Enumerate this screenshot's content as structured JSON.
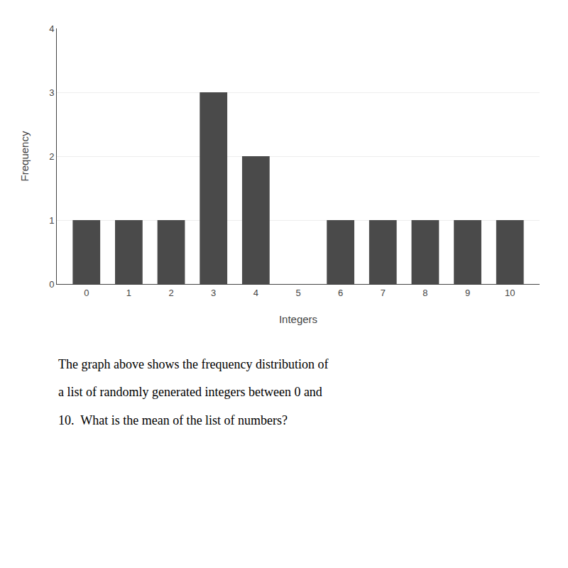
{
  "chart_data": {
    "type": "bar",
    "x": [
      0,
      1,
      2,
      3,
      4,
      5,
      6,
      7,
      8,
      9,
      10
    ],
    "values": [
      1,
      1,
      1,
      3,
      2,
      0,
      1,
      1,
      1,
      1,
      1
    ],
    "color": "#4a4a4a",
    "xlabel": "Integers",
    "ylabel": "Frequency",
    "xlim": [
      -0.7,
      10.7
    ],
    "xticks": [
      0,
      1,
      2,
      3,
      4,
      5,
      6,
      7,
      8,
      9,
      10
    ],
    "ylim": [
      0,
      4
    ],
    "yticks": [
      0,
      1,
      2,
      3,
      4
    ],
    "grid": true,
    "annotations": [
      "The graph above shows the frequency distribution of",
      "a list of randomly generated integers between 0 and",
      "10.  What is the mean of the list of numbers?"
    ]
  }
}
